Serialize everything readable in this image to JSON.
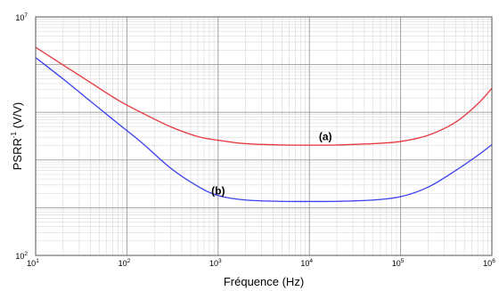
{
  "chart_data": {
    "type": "line",
    "xlabel": "Fréquence (Hz)",
    "ylabel_base": "PSRR",
    "ylabel_sup": "-1",
    "ylabel_unit": " (V/V)",
    "xscale": "log",
    "yscale": "log",
    "xlim": [
      10,
      1000000
    ],
    "ylim": [
      100,
      10000000
    ],
    "grid": true,
    "x_ticks": [
      {
        "value": 10,
        "base": "10",
        "exp": "1"
      },
      {
        "value": 100,
        "base": "10",
        "exp": "2"
      },
      {
        "value": 1000,
        "base": "10",
        "exp": "3"
      },
      {
        "value": 10000,
        "base": "10",
        "exp": "4"
      },
      {
        "value": 100000,
        "base": "10",
        "exp": "5"
      },
      {
        "value": 1000000,
        "base": "10",
        "exp": "6"
      }
    ],
    "y_ticks": [
      {
        "value": 100,
        "base": "10",
        "exp": "2"
      },
      {
        "value": 10000000,
        "base": "10",
        "exp": "7"
      }
    ],
    "series": [
      {
        "color": "#e8393f",
        "x": [
          10,
          20,
          40,
          80,
          150,
          300,
          600,
          1000,
          2000,
          5000,
          10000,
          20000,
          50000,
          100000,
          200000,
          400000,
          700000,
          1000000
        ],
        "y": [
          2300000,
          980000,
          420000,
          180000,
          95000,
          50000,
          31000,
          26000,
          22000,
          20700,
          20500,
          20700,
          22000,
          24500,
          33000,
          62000,
          150000,
          320000
        ]
      },
      {
        "color": "#3a3ff0",
        "x": [
          10,
          20,
          40,
          80,
          150,
          300,
          600,
          1000,
          2000,
          5000,
          10000,
          20000,
          50000,
          100000,
          200000,
          400000,
          700000,
          1000000
        ],
        "y": [
          1400000,
          500000,
          170000,
          58000,
          22000,
          6800,
          2800,
          1800,
          1450,
          1360,
          1350,
          1360,
          1450,
          1700,
          2700,
          6000,
          12500,
          21000
        ]
      }
    ],
    "annotations": [
      {
        "text": "(a)",
        "x": 15000,
        "y": 26000
      },
      {
        "text": "(b)",
        "x": 1000,
        "y": 1900
      }
    ]
  }
}
